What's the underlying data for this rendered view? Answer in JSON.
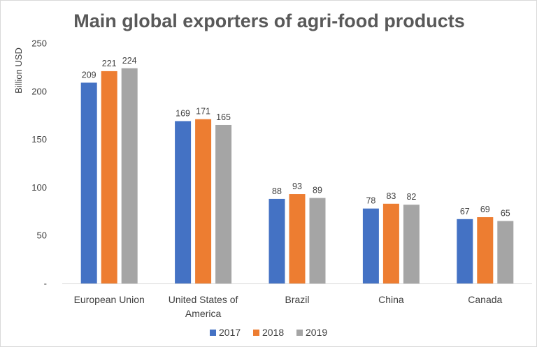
{
  "chart_data": {
    "type": "bar",
    "title": "Main global exporters of agri-food products",
    "ylabel": "Billion USD",
    "xlabel": "",
    "ylim": [
      0,
      250
    ],
    "yticks": [
      {
        "value": 0,
        "label": "-"
      },
      {
        "value": 50,
        "label": "50"
      },
      {
        "value": 100,
        "label": "100"
      },
      {
        "value": 150,
        "label": "150"
      },
      {
        "value": 200,
        "label": "200"
      },
      {
        "value": 250,
        "label": "250"
      }
    ],
    "grid": false,
    "legend_position": "bottom",
    "categories": [
      [
        "European Union"
      ],
      [
        "United States of",
        "America"
      ],
      [
        "Brazil"
      ],
      [
        "China"
      ],
      [
        "Canada"
      ]
    ],
    "series": [
      {
        "name": "2017",
        "color": "#4472c4",
        "values": [
          209,
          169,
          88,
          78,
          67
        ]
      },
      {
        "name": "2018",
        "color": "#ed7d31",
        "values": [
          221,
          171,
          93,
          83,
          69
        ]
      },
      {
        "name": "2019",
        "color": "#a5a5a5",
        "values": [
          224,
          165,
          89,
          82,
          65
        ]
      }
    ]
  }
}
